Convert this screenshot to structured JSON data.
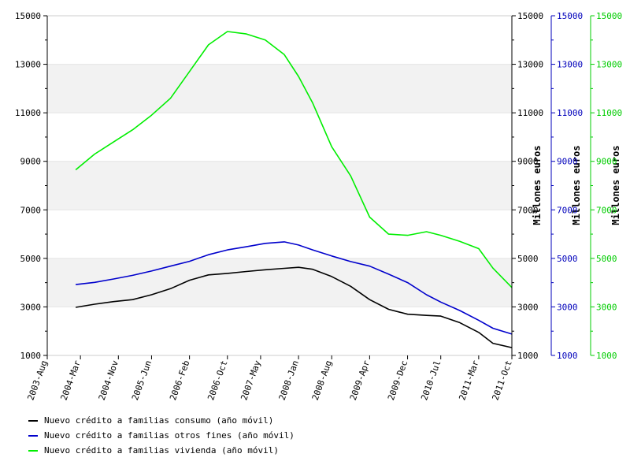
{
  "chart_data": {
    "type": "line",
    "title": "",
    "xlabel": "",
    "x_ticks": [
      "2003-Aug",
      "2004-Mar",
      "2004-Nov",
      "2005-Jun",
      "2006-Feb",
      "2006-Oct",
      "2007-May",
      "2008-Jan",
      "2008-Aug",
      "2009-Apr",
      "2009-Dec",
      "2010-Jul",
      "2011-Mar",
      "2011-Oct"
    ],
    "y_ticks": [
      1000,
      3000,
      5000,
      7000,
      9000,
      11000,
      13000,
      15000
    ],
    "ylim": [
      1000,
      15000
    ],
    "axes": [
      {
        "label": "",
        "color": "#000000"
      },
      {
        "label": "Millones euros",
        "color": "#000000"
      },
      {
        "label": "Millones euros",
        "color": "#0000bb"
      },
      {
        "label": "Millones euros",
        "color": "#00cc00"
      }
    ],
    "grid": "horizontal bands",
    "legend_position": "bottom-left",
    "series": [
      {
        "name": "Nuevo crédito a familias consumo (año móvil)",
        "color": "#000000",
        "points": [
          [
            "2004-02",
            2980
          ],
          [
            "2004-06",
            3110
          ],
          [
            "2004-10",
            3220
          ],
          [
            "2005-02",
            3300
          ],
          [
            "2005-06",
            3500
          ],
          [
            "2005-10",
            3750
          ],
          [
            "2006-02",
            4100
          ],
          [
            "2006-06",
            4320
          ],
          [
            "2006-10",
            4380
          ],
          [
            "2007-02",
            4460
          ],
          [
            "2007-06",
            4530
          ],
          [
            "2007-10",
            4590
          ],
          [
            "2008-01",
            4630
          ],
          [
            "2008-04",
            4550
          ],
          [
            "2008-08",
            4250
          ],
          [
            "2008-12",
            3850
          ],
          [
            "2009-04",
            3300
          ],
          [
            "2009-08",
            2900
          ],
          [
            "2009-12",
            2700
          ],
          [
            "2010-04",
            2650
          ],
          [
            "2010-07",
            2620
          ],
          [
            "2010-11",
            2350
          ],
          [
            "2011-03",
            1950
          ],
          [
            "2011-06",
            1500
          ],
          [
            "2011-10",
            1320
          ]
        ]
      },
      {
        "name": "Nuevo crédito a familias otros fines (año móvil)",
        "color": "#0000cc",
        "points": [
          [
            "2004-02",
            3920
          ],
          [
            "2004-06",
            4010
          ],
          [
            "2004-10",
            4150
          ],
          [
            "2005-02",
            4300
          ],
          [
            "2005-06",
            4480
          ],
          [
            "2005-10",
            4680
          ],
          [
            "2006-02",
            4880
          ],
          [
            "2006-06",
            5150
          ],
          [
            "2006-10",
            5350
          ],
          [
            "2007-02",
            5480
          ],
          [
            "2007-06",
            5620
          ],
          [
            "2007-10",
            5680
          ],
          [
            "2008-01",
            5550
          ],
          [
            "2008-04",
            5350
          ],
          [
            "2008-08",
            5100
          ],
          [
            "2008-12",
            4870
          ],
          [
            "2009-04",
            4680
          ],
          [
            "2009-08",
            4350
          ],
          [
            "2009-12",
            4000
          ],
          [
            "2010-04",
            3500
          ],
          [
            "2010-07",
            3200
          ],
          [
            "2010-11",
            2850
          ],
          [
            "2011-03",
            2450
          ],
          [
            "2011-06",
            2120
          ],
          [
            "2011-10",
            1880
          ]
        ]
      },
      {
        "name": "Nuevo crédito a familias vivienda (año móvil)",
        "color": "#00ee00",
        "points": [
          [
            "2004-02",
            8650
          ],
          [
            "2004-06",
            9300
          ],
          [
            "2004-10",
            9800
          ],
          [
            "2005-02",
            10300
          ],
          [
            "2005-06",
            10900
          ],
          [
            "2005-10",
            11600
          ],
          [
            "2006-02",
            12700
          ],
          [
            "2006-06",
            13800
          ],
          [
            "2006-10",
            14350
          ],
          [
            "2007-02",
            14250
          ],
          [
            "2007-06",
            14000
          ],
          [
            "2007-10",
            13400
          ],
          [
            "2008-01",
            12500
          ],
          [
            "2008-04",
            11400
          ],
          [
            "2008-08",
            9600
          ],
          [
            "2008-12",
            8400
          ],
          [
            "2009-04",
            6700
          ],
          [
            "2009-08",
            6000
          ],
          [
            "2009-12",
            5950
          ],
          [
            "2010-04",
            6100
          ],
          [
            "2010-07",
            5950
          ],
          [
            "2010-11",
            5700
          ],
          [
            "2011-03",
            5400
          ],
          [
            "2011-06",
            4600
          ],
          [
            "2011-10",
            3800
          ]
        ]
      }
    ]
  }
}
